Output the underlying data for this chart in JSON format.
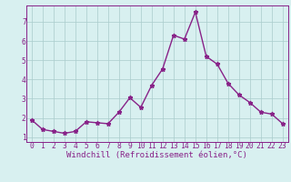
{
  "x": [
    0,
    1,
    2,
    3,
    4,
    5,
    6,
    7,
    8,
    9,
    10,
    11,
    12,
    13,
    14,
    15,
    16,
    17,
    18,
    19,
    20,
    21,
    22,
    23
  ],
  "y": [
    1.9,
    1.4,
    1.3,
    1.2,
    1.3,
    1.8,
    1.75,
    1.7,
    2.3,
    3.05,
    2.55,
    3.7,
    4.55,
    6.3,
    6.1,
    7.5,
    5.2,
    4.8,
    3.8,
    3.2,
    2.8,
    2.3,
    2.2,
    1.7
  ],
  "line_color": "#882288",
  "marker": "*",
  "marker_size": 3.5,
  "xlabel": "Windchill (Refroidissement éolien,°C)",
  "xlim": [
    -0.5,
    23.5
  ],
  "ylim": [
    0.75,
    7.85
  ],
  "xticks": [
    0,
    1,
    2,
    3,
    4,
    5,
    6,
    7,
    8,
    9,
    10,
    11,
    12,
    13,
    14,
    15,
    16,
    17,
    18,
    19,
    20,
    21,
    22,
    23
  ],
  "yticks": [
    1,
    2,
    3,
    4,
    5,
    6,
    7
  ],
  "bg_color": "#d8f0f0",
  "grid_color": "#aacccc",
  "tick_color": "#882288",
  "label_color": "#882288",
  "xlabel_fontsize": 6.5,
  "tick_fontsize": 5.8,
  "linewidth": 1.0
}
